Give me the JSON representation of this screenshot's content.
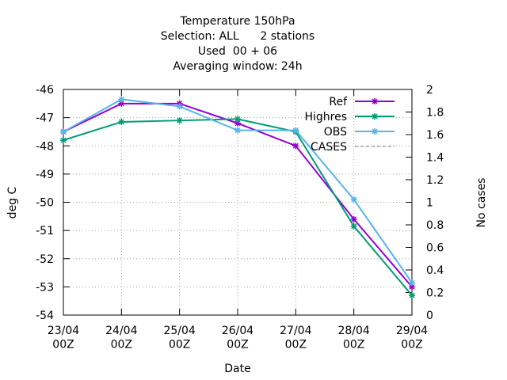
{
  "chart_data": {
    "type": "line",
    "title": [
      "Temperature 150hPa",
      "Selection: ALL      2 stations",
      "Used  00 + 06",
      "Averaging window: 24h"
    ],
    "xlabel": "Date",
    "ylabel": "deg C",
    "y2label": "No cases",
    "categories": [
      "23/04\n00Z",
      "24/04\n00Z",
      "25/04\n00Z",
      "26/04\n00Z",
      "27/04\n00Z",
      "28/04\n00Z",
      "29/04\n00Z"
    ],
    "series": [
      {
        "name": "Ref",
        "color": "#9400d3",
        "values": [
          -47.5,
          -46.5,
          -46.5,
          -47.2,
          -48.0,
          -50.6,
          -53.0
        ]
      },
      {
        "name": "Highres",
        "color": "#009e73",
        "values": [
          -47.8,
          -47.15,
          -47.1,
          -47.05,
          -47.5,
          -50.85,
          -53.3
        ]
      },
      {
        "name": "OBS",
        "color": "#56b4e9",
        "values": [
          -47.5,
          -46.35,
          -46.6,
          -47.45,
          -47.45,
          -49.9,
          -52.85
        ]
      },
      {
        "name": "CASES",
        "color": "#808080",
        "dashed": true,
        "axis": "y2",
        "values": [
          null,
          null,
          null,
          null,
          null,
          null,
          null
        ]
      }
    ],
    "ylim": [
      -54,
      -46
    ],
    "yticks": [
      -54,
      -53,
      -52,
      -51,
      -50,
      -49,
      -48,
      -47,
      -46
    ],
    "y2lim": [
      0,
      2
    ],
    "y2ticks": [
      0,
      0.2,
      0.4,
      0.6,
      0.8,
      1,
      1.2,
      1.4,
      1.6,
      1.8,
      2
    ],
    "grid": true,
    "legend": "upper right"
  }
}
